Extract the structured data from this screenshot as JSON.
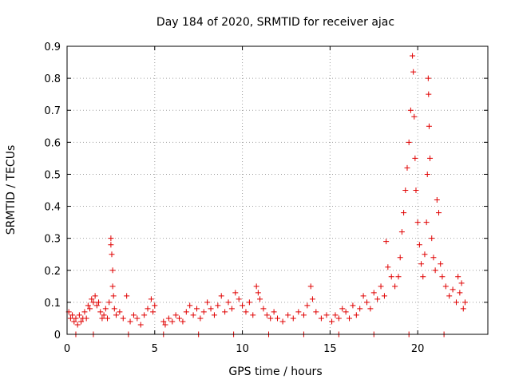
{
  "chart_data": {
    "type": "scatter",
    "title": "Day 184 of 2020, SRMTID for receiver ajac",
    "xlabel": "GPS time / hours",
    "ylabel": "SRMTID / TECUs",
    "xlim": [
      0,
      24
    ],
    "ylim": [
      0,
      0.9
    ],
    "xticks": [
      0,
      5,
      10,
      15,
      20
    ],
    "xtick_labels": [
      "0",
      "5",
      "10",
      "15",
      "20"
    ],
    "yticks": [
      0,
      0.1,
      0.2,
      0.3,
      0.4,
      0.5,
      0.6,
      0.7,
      0.8,
      0.9
    ],
    "ytick_labels": [
      "0",
      "0.1",
      "0.2",
      "0.3",
      "0.4",
      "0.5",
      "0.6",
      "0.7",
      "0.8",
      "0.9"
    ],
    "grid": true,
    "marker": "+",
    "color": "#e00000",
    "series": [
      {
        "name": "SRMTID",
        "points": [
          [
            0.1,
            0.07
          ],
          [
            0.2,
            0.05
          ],
          [
            0.3,
            0.06
          ],
          [
            0.4,
            0.04
          ],
          [
            0.5,
            0.05
          ],
          [
            0.6,
            0.03
          ],
          [
            0.7,
            0.06
          ],
          [
            0.8,
            0.04
          ],
          [
            0.9,
            0.05
          ],
          [
            1.0,
            0.07
          ],
          [
            1.1,
            0.05
          ],
          [
            1.2,
            0.09
          ],
          [
            1.3,
            0.08
          ],
          [
            1.4,
            0.11
          ],
          [
            1.5,
            0.1
          ],
          [
            1.6,
            0.12
          ],
          [
            1.7,
            0.09
          ],
          [
            1.8,
            0.1
          ],
          [
            1.9,
            0.07
          ],
          [
            2.0,
            0.05
          ],
          [
            2.1,
            0.06
          ],
          [
            2.2,
            0.08
          ],
          [
            2.3,
            0.05
          ],
          [
            2.4,
            0.1
          ],
          [
            2.5,
            0.3
          ],
          [
            2.5,
            0.28
          ],
          [
            2.55,
            0.25
          ],
          [
            2.6,
            0.2
          ],
          [
            2.6,
            0.15
          ],
          [
            2.65,
            0.12
          ],
          [
            2.7,
            0.08
          ],
          [
            2.8,
            0.06
          ],
          [
            3.0,
            0.07
          ],
          [
            3.2,
            0.05
          ],
          [
            3.4,
            0.12
          ],
          [
            3.6,
            0.04
          ],
          [
            3.8,
            0.06
          ],
          [
            4.0,
            0.05
          ],
          [
            4.2,
            0.03
          ],
          [
            4.4,
            0.06
          ],
          [
            4.6,
            0.08
          ],
          [
            4.8,
            0.11
          ],
          [
            4.9,
            0.07
          ],
          [
            5.0,
            0.09
          ],
          [
            5.5,
            0.04
          ],
          [
            5.6,
            0.03
          ],
          [
            5.8,
            0.05
          ],
          [
            6.0,
            0.04
          ],
          [
            6.2,
            0.06
          ],
          [
            6.4,
            0.05
          ],
          [
            6.6,
            0.04
          ],
          [
            6.8,
            0.07
          ],
          [
            7.0,
            0.09
          ],
          [
            7.2,
            0.06
          ],
          [
            7.4,
            0.08
          ],
          [
            7.6,
            0.05
          ],
          [
            7.8,
            0.07
          ],
          [
            8.0,
            0.1
          ],
          [
            8.2,
            0.08
          ],
          [
            8.4,
            0.06
          ],
          [
            8.6,
            0.09
          ],
          [
            8.8,
            0.12
          ],
          [
            9.0,
            0.07
          ],
          [
            9.2,
            0.1
          ],
          [
            9.4,
            0.08
          ],
          [
            9.6,
            0.13
          ],
          [
            9.8,
            0.11
          ],
          [
            10.0,
            0.09
          ],
          [
            10.2,
            0.07
          ],
          [
            10.4,
            0.1
          ],
          [
            10.6,
            0.06
          ],
          [
            10.8,
            0.15
          ],
          [
            10.9,
            0.13
          ],
          [
            11.0,
            0.11
          ],
          [
            11.2,
            0.08
          ],
          [
            11.4,
            0.06
          ],
          [
            11.6,
            0.05
          ],
          [
            11.8,
            0.07
          ],
          [
            12.0,
            0.05
          ],
          [
            12.3,
            0.04
          ],
          [
            12.6,
            0.06
          ],
          [
            12.9,
            0.05
          ],
          [
            13.2,
            0.07
          ],
          [
            13.5,
            0.06
          ],
          [
            13.7,
            0.09
          ],
          [
            13.9,
            0.15
          ],
          [
            14.0,
            0.11
          ],
          [
            14.2,
            0.07
          ],
          [
            14.5,
            0.05
          ],
          [
            14.8,
            0.06
          ],
          [
            15.1,
            0.04
          ],
          [
            15.3,
            0.06
          ],
          [
            15.5,
            0.05
          ],
          [
            15.7,
            0.08
          ],
          [
            15.9,
            0.07
          ],
          [
            16.1,
            0.05
          ],
          [
            16.3,
            0.09
          ],
          [
            16.5,
            0.06
          ],
          [
            16.7,
            0.08
          ],
          [
            16.9,
            0.12
          ],
          [
            17.1,
            0.1
          ],
          [
            17.3,
            0.08
          ],
          [
            17.5,
            0.13
          ],
          [
            17.7,
            0.11
          ],
          [
            17.9,
            0.15
          ],
          [
            18.1,
            0.12
          ],
          [
            18.2,
            0.29
          ],
          [
            18.3,
            0.21
          ],
          [
            18.5,
            0.18
          ],
          [
            18.7,
            0.15
          ],
          [
            18.9,
            0.18
          ],
          [
            19.0,
            0.24
          ],
          [
            19.1,
            0.32
          ],
          [
            19.2,
            0.38
          ],
          [
            19.3,
            0.45
          ],
          [
            19.4,
            0.52
          ],
          [
            19.5,
            0.6
          ],
          [
            19.6,
            0.7
          ],
          [
            19.7,
            0.87
          ],
          [
            19.75,
            0.82
          ],
          [
            19.8,
            0.68
          ],
          [
            19.85,
            0.55
          ],
          [
            19.9,
            0.45
          ],
          [
            20.0,
            0.35
          ],
          [
            20.1,
            0.28
          ],
          [
            20.2,
            0.22
          ],
          [
            20.3,
            0.18
          ],
          [
            20.4,
            0.25
          ],
          [
            20.5,
            0.35
          ],
          [
            20.55,
            0.5
          ],
          [
            20.6,
            0.8
          ],
          [
            20.62,
            0.75
          ],
          [
            20.65,
            0.65
          ],
          [
            20.7,
            0.55
          ],
          [
            20.8,
            0.3
          ],
          [
            20.9,
            0.24
          ],
          [
            21.0,
            0.2
          ],
          [
            21.1,
            0.42
          ],
          [
            21.2,
            0.38
          ],
          [
            21.3,
            0.22
          ],
          [
            21.4,
            0.18
          ],
          [
            21.6,
            0.15
          ],
          [
            21.8,
            0.12
          ],
          [
            22.0,
            0.14
          ],
          [
            22.2,
            0.1
          ],
          [
            22.3,
            0.18
          ],
          [
            22.4,
            0.13
          ],
          [
            22.5,
            0.16
          ],
          [
            22.6,
            0.08
          ],
          [
            22.7,
            0.1
          ],
          [
            0.5,
            0
          ],
          [
            1.5,
            0
          ],
          [
            3.5,
            0
          ],
          [
            5.5,
            0
          ],
          [
            7.5,
            0
          ],
          [
            9.5,
            0
          ],
          [
            11.5,
            0
          ],
          [
            13.5,
            0
          ],
          [
            15.5,
            0
          ],
          [
            17.5,
            0
          ],
          [
            19.5,
            0
          ],
          [
            21.5,
            0
          ]
        ]
      }
    ]
  }
}
